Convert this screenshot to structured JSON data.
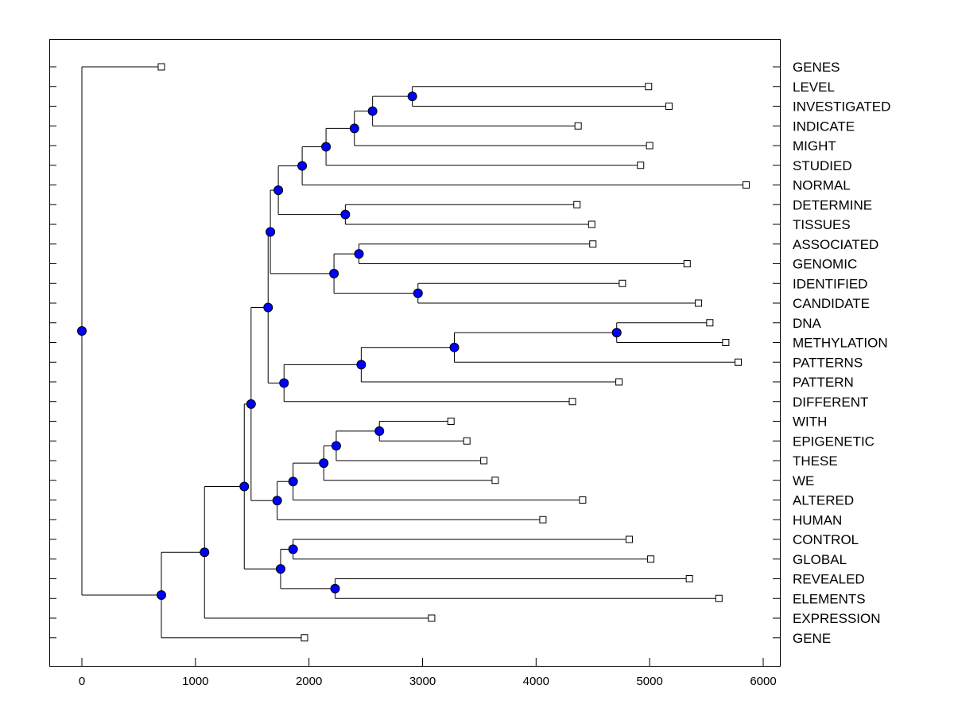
{
  "chart_data": {
    "type": "dendrogram",
    "title": "",
    "xlabel": "",
    "ylabel": "",
    "xlim": [
      -280,
      6150
    ],
    "xticks": [
      0,
      1000,
      2000,
      3000,
      4000,
      5000,
      6000
    ],
    "xtick_labels": [
      "0",
      "1000",
      "2000",
      "3000",
      "4000",
      "5000",
      "6000"
    ],
    "leaves": [
      {
        "label": "GENES",
        "x": 700
      },
      {
        "label": "LEVEL",
        "x": 4990
      },
      {
        "label": "INVESTIGATED",
        "x": 5170
      },
      {
        "label": "INDICATE",
        "x": 4370
      },
      {
        "label": "MIGHT",
        "x": 5000
      },
      {
        "label": "STUDIED",
        "x": 4920
      },
      {
        "label": "NORMAL",
        "x": 5850
      },
      {
        "label": "DETERMINE",
        "x": 4360
      },
      {
        "label": "TISSUES",
        "x": 4490
      },
      {
        "label": "ASSOCIATED",
        "x": 4500
      },
      {
        "label": "GENOMIC",
        "x": 5330
      },
      {
        "label": "IDENTIFIED",
        "x": 4760
      },
      {
        "label": "CANDIDATE",
        "x": 5430
      },
      {
        "label": "DNA",
        "x": 5530
      },
      {
        "label": "METHYLATION",
        "x": 5670
      },
      {
        "label": "PATTERNS",
        "x": 5780
      },
      {
        "label": "PATTERN",
        "x": 4730
      },
      {
        "label": "DIFFERENT",
        "x": 4320
      },
      {
        "label": "WITH",
        "x": 3250
      },
      {
        "label": "EPIGENETIC",
        "x": 3390
      },
      {
        "label": "THESE",
        "x": 3540
      },
      {
        "label": "WE",
        "x": 3640
      },
      {
        "label": "ALTERED",
        "x": 4410
      },
      {
        "label": "HUMAN",
        "x": 4060
      },
      {
        "label": "CONTROL",
        "x": 4820
      },
      {
        "label": "GLOBAL",
        "x": 5010
      },
      {
        "label": "REVEALED",
        "x": 5350
      },
      {
        "label": "ELEMENTS",
        "x": 5610
      },
      {
        "label": "EXPRESSION",
        "x": 3080
      },
      {
        "label": "GENE",
        "x": 1960
      }
    ],
    "merges": [
      {
        "id": "n1",
        "x": 2910,
        "children": [
          "LEVEL",
          "INVESTIGATED"
        ]
      },
      {
        "id": "n2",
        "x": 2560,
        "children": [
          "n1",
          "INDICATE"
        ]
      },
      {
        "id": "n3",
        "x": 2400,
        "children": [
          "n2",
          "MIGHT"
        ]
      },
      {
        "id": "n4",
        "x": 2150,
        "children": [
          "n3",
          "STUDIED"
        ]
      },
      {
        "id": "n5",
        "x": 1940,
        "children": [
          "n4",
          "NORMAL"
        ]
      },
      {
        "id": "n6",
        "x": 2320,
        "children": [
          "DETERMINE",
          "TISSUES"
        ]
      },
      {
        "id": "n7",
        "x": 1730,
        "children": [
          "n5",
          "n6"
        ]
      },
      {
        "id": "n8",
        "x": 2440,
        "children": [
          "ASSOCIATED",
          "GENOMIC"
        ]
      },
      {
        "id": "n9",
        "x": 2960,
        "children": [
          "IDENTIFIED",
          "CANDIDATE"
        ]
      },
      {
        "id": "n10",
        "x": 2220,
        "children": [
          "n8",
          "n9"
        ]
      },
      {
        "id": "n11",
        "x": 1660,
        "children": [
          "n7",
          "n10"
        ]
      },
      {
        "id": "n12",
        "x": 4710,
        "children": [
          "DNA",
          "METHYLATION"
        ]
      },
      {
        "id": "n13",
        "x": 3280,
        "children": [
          "n12",
          "PATTERNS"
        ]
      },
      {
        "id": "n14",
        "x": 2460,
        "children": [
          "n13",
          "PATTERN"
        ]
      },
      {
        "id": "n15",
        "x": 1780,
        "children": [
          "n14",
          "DIFFERENT"
        ]
      },
      {
        "id": "n16",
        "x": 1640,
        "children": [
          "n11",
          "n15"
        ]
      },
      {
        "id": "n17",
        "x": 2620,
        "children": [
          "WITH",
          "EPIGENETIC"
        ]
      },
      {
        "id": "n18",
        "x": 2240,
        "children": [
          "n17",
          "THESE"
        ]
      },
      {
        "id": "n19",
        "x": 2130,
        "children": [
          "n18",
          "WE"
        ]
      },
      {
        "id": "n20",
        "x": 1860,
        "children": [
          "n19",
          "ALTERED"
        ]
      },
      {
        "id": "n21",
        "x": 1720,
        "children": [
          "n20",
          "HUMAN"
        ]
      },
      {
        "id": "n22",
        "x": 1490,
        "children": [
          "n16",
          "n21"
        ]
      },
      {
        "id": "n23",
        "x": 1860,
        "children": [
          "CONTROL",
          "GLOBAL"
        ]
      },
      {
        "id": "n24",
        "x": 2230,
        "children": [
          "REVEALED",
          "ELEMENTS"
        ]
      },
      {
        "id": "n25",
        "x": 1750,
        "children": [
          "n23",
          "n24"
        ]
      },
      {
        "id": "n26",
        "x": 1430,
        "children": [
          "n22",
          "n25"
        ]
      },
      {
        "id": "n27",
        "x": 1080,
        "children": [
          "n26",
          "EXPRESSION"
        ]
      },
      {
        "id": "n28",
        "x": 700,
        "children": [
          "n27",
          "GENE"
        ]
      },
      {
        "id": "n29",
        "x": 0,
        "children": [
          "GENES",
          "n28"
        ]
      }
    ],
    "style": {
      "line_color": "#000000",
      "node_color": "#0000ff",
      "leaf_marker_color": "#ffffff"
    }
  }
}
